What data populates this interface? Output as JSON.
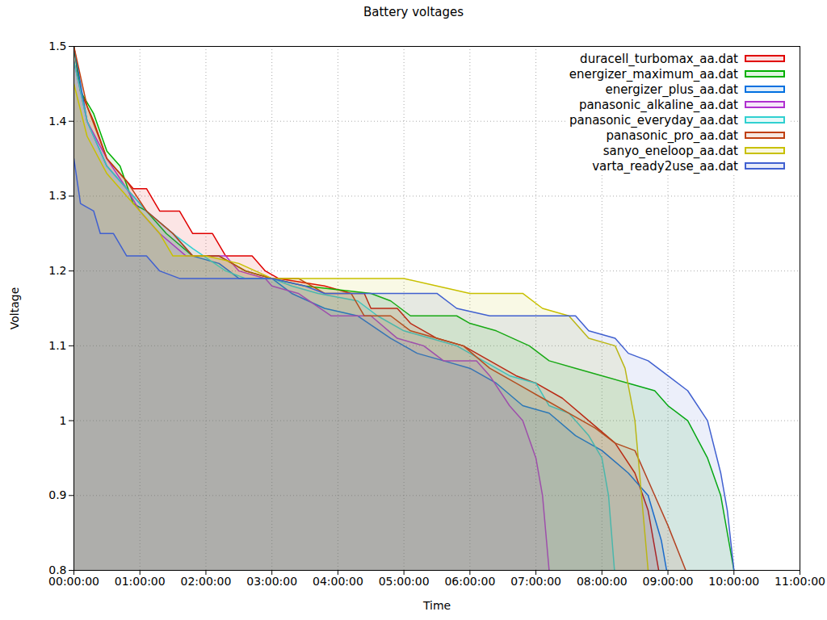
{
  "chart_data": {
    "type": "area",
    "title": "Battery voltages",
    "x_label": "Time",
    "y_label": "Voltage",
    "xlim": [
      0,
      11
    ],
    "xticks": [
      {
        "value": 0,
        "label": "00:00:00"
      },
      {
        "value": 1,
        "label": "01:00:00"
      },
      {
        "value": 2,
        "label": "02:00:00"
      },
      {
        "value": 3,
        "label": "03:00:00"
      },
      {
        "value": 4,
        "label": "04:00:00"
      },
      {
        "value": 5,
        "label": "05:00:00"
      },
      {
        "value": 6,
        "label": "06:00:00"
      },
      {
        "value": 7,
        "label": "07:00:00"
      },
      {
        "value": 8,
        "label": "08:00:00"
      },
      {
        "value": 9,
        "label": "09:00:00"
      },
      {
        "value": 10,
        "label": "10:00:00"
      },
      {
        "value": 11,
        "label": "11:00:00"
      }
    ],
    "ylim": [
      0.8,
      1.5
    ],
    "yticks": [
      0.8,
      0.9,
      1,
      1.1,
      1.2,
      1.3,
      1.4,
      1.5
    ],
    "grid": true,
    "legend": "top-right",
    "series": [
      {
        "name": "duracell_turbomax_aa.dat",
        "color": "#e00000",
        "x": [
          0,
          0.1,
          0.3,
          0.5,
          0.7,
          0.9,
          1.1,
          1.3,
          1.6,
          1.8,
          2.1,
          2.3,
          2.7,
          2.9,
          3.1,
          3.8,
          4.2,
          4.4,
          4.5,
          4.9,
          5.1,
          5.5,
          5.9,
          6.3,
          6.7,
          7.0,
          7.4,
          7.8,
          8.2,
          8.5,
          8.7,
          8.86
        ],
        "values": [
          1.5,
          1.44,
          1.4,
          1.35,
          1.33,
          1.31,
          1.31,
          1.28,
          1.28,
          1.25,
          1.25,
          1.22,
          1.22,
          1.2,
          1.19,
          1.18,
          1.17,
          1.17,
          1.15,
          1.15,
          1.13,
          1.11,
          1.1,
          1.08,
          1.06,
          1.05,
          1.03,
          1.0,
          0.97,
          0.93,
          0.88,
          0.8
        ]
      },
      {
        "name": "energizer_maximum_aa.dat",
        "color": "#00b000",
        "x": [
          0,
          0.1,
          0.3,
          0.5,
          0.7,
          0.9,
          1.1,
          1.4,
          1.8,
          2.2,
          2.6,
          3.0,
          3.5,
          4.5,
          4.8,
          5.1,
          5.8,
          6.0,
          6.4,
          6.9,
          7.2,
          7.6,
          8.0,
          8.4,
          8.8,
          9.0,
          9.3,
          9.6,
          9.8,
          10.0
        ],
        "values": [
          1.5,
          1.44,
          1.41,
          1.36,
          1.34,
          1.29,
          1.28,
          1.25,
          1.22,
          1.22,
          1.2,
          1.19,
          1.18,
          1.17,
          1.16,
          1.14,
          1.14,
          1.13,
          1.12,
          1.1,
          1.08,
          1.07,
          1.06,
          1.05,
          1.04,
          1.02,
          1.0,
          0.95,
          0.9,
          0.8
        ]
      },
      {
        "name": "energizer_plus_aa.dat",
        "color": "#0070e0",
        "x": [
          0,
          0.2,
          0.5,
          0.8,
          1.1,
          1.5,
          1.8,
          2.2,
          2.5,
          3.0,
          3.3,
          3.8,
          4.3,
          4.8,
          5.2,
          5.6,
          6.0,
          6.4,
          6.8,
          7.2,
          7.6,
          8.0,
          8.4,
          8.7,
          8.9,
          8.98
        ],
        "values": [
          1.5,
          1.4,
          1.34,
          1.31,
          1.28,
          1.25,
          1.22,
          1.21,
          1.19,
          1.19,
          1.17,
          1.15,
          1.14,
          1.11,
          1.09,
          1.08,
          1.07,
          1.05,
          1.02,
          1.01,
          0.98,
          0.96,
          0.93,
          0.9,
          0.84,
          0.8
        ]
      },
      {
        "name": "panasonic_alkaline_aa.dat",
        "color": "#b030d0",
        "x": [
          0,
          0.2,
          0.5,
          0.8,
          1.0,
          1.3,
          1.7,
          2.3,
          2.5,
          2.9,
          3.0,
          3.4,
          3.9,
          4.5,
          4.9,
          5.3,
          5.6,
          6.1,
          6.3,
          6.6,
          6.8,
          7.0,
          7.1,
          7.2
        ],
        "values": [
          1.48,
          1.4,
          1.35,
          1.31,
          1.28,
          1.25,
          1.22,
          1.22,
          1.2,
          1.19,
          1.18,
          1.17,
          1.14,
          1.14,
          1.11,
          1.1,
          1.08,
          1.08,
          1.06,
          1.02,
          1.0,
          0.95,
          0.9,
          0.8
        ]
      },
      {
        "name": "panasonic_everyday_aa.dat",
        "color": "#30d0d0",
        "x": [
          0,
          0.2,
          0.5,
          0.8,
          1.1,
          1.5,
          1.8,
          2.3,
          2.6,
          3.0,
          3.3,
          3.7,
          4.3,
          4.6,
          5.0,
          5.4,
          5.8,
          6.2,
          6.6,
          7.0,
          7.2,
          7.5,
          7.8,
          8.0,
          8.1,
          8.19
        ],
        "values": [
          1.48,
          1.4,
          1.34,
          1.31,
          1.28,
          1.25,
          1.23,
          1.2,
          1.19,
          1.19,
          1.18,
          1.17,
          1.16,
          1.14,
          1.12,
          1.11,
          1.1,
          1.08,
          1.06,
          1.05,
          1.02,
          1.01,
          0.98,
          0.95,
          0.9,
          0.8
        ]
      },
      {
        "name": "panasonic_pro_aa.dat",
        "color": "#c04010",
        "x": [
          0,
          0.2,
          0.5,
          0.8,
          1.1,
          1.5,
          1.8,
          2.2,
          2.6,
          3.0,
          3.4,
          3.8,
          4.2,
          4.4,
          4.8,
          5.1,
          5.5,
          5.9,
          6.3,
          6.7,
          7.1,
          7.5,
          7.9,
          8.2,
          8.5,
          8.8,
          9.0,
          9.27
        ],
        "values": [
          1.5,
          1.42,
          1.35,
          1.32,
          1.28,
          1.25,
          1.22,
          1.22,
          1.2,
          1.19,
          1.19,
          1.17,
          1.17,
          1.14,
          1.14,
          1.12,
          1.11,
          1.1,
          1.07,
          1.05,
          1.03,
          1.01,
          0.99,
          0.97,
          0.96,
          0.9,
          0.86,
          0.8
        ]
      },
      {
        "name": "sanyo_eneloop_aa.dat",
        "color": "#c8c000",
        "x": [
          0,
          0.2,
          0.5,
          0.8,
          1.0,
          1.3,
          1.5,
          2.0,
          2.5,
          3.0,
          5.0,
          5.5,
          6.0,
          6.8,
          7.1,
          7.5,
          7.8,
          8.2,
          8.35,
          8.5,
          8.6,
          8.7
        ],
        "values": [
          1.45,
          1.38,
          1.33,
          1.3,
          1.28,
          1.25,
          1.22,
          1.22,
          1.21,
          1.19,
          1.19,
          1.18,
          1.17,
          1.17,
          1.15,
          1.14,
          1.11,
          1.1,
          1.07,
          1.0,
          0.9,
          0.8
        ]
      },
      {
        "name": "varta_ready2use_aa.dat",
        "color": "#4060d0",
        "x": [
          0,
          0.1,
          0.3,
          0.4,
          0.6,
          0.8,
          1.1,
          1.3,
          1.6,
          3.0,
          3.5,
          3.8,
          5.5,
          5.8,
          6.3,
          7.6,
          7.8,
          8.2,
          8.4,
          8.7,
          9.0,
          9.3,
          9.6,
          9.8,
          9.9,
          10.0
        ],
        "values": [
          1.35,
          1.29,
          1.28,
          1.25,
          1.25,
          1.22,
          1.22,
          1.2,
          1.19,
          1.19,
          1.18,
          1.17,
          1.17,
          1.15,
          1.14,
          1.14,
          1.12,
          1.11,
          1.09,
          1.08,
          1.06,
          1.04,
          1.0,
          0.93,
          0.88,
          0.8
        ]
      }
    ]
  }
}
